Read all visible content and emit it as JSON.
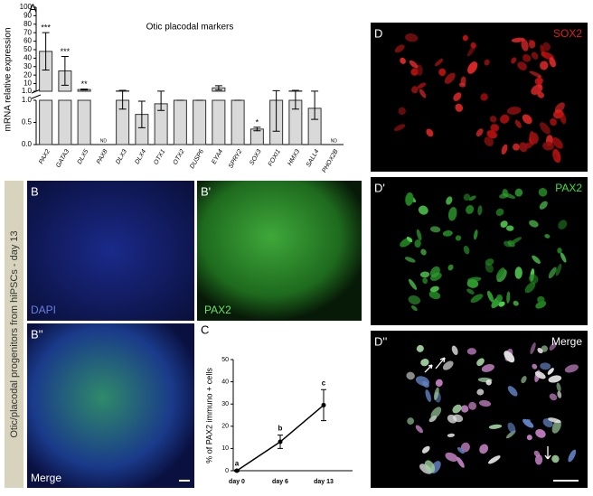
{
  "figure": {
    "panels": {
      "a": "A",
      "b": "B",
      "b1": "B'",
      "b2": "B''",
      "c": "C",
      "d": "D",
      "d1": "D'",
      "d2": "D''"
    },
    "side_label": "Otic/placodal progenitors from hiPSCs - day 13",
    "image_labels": {
      "b": "DAPI",
      "b1": "PAX2",
      "b2": "Merge",
      "d": "SOX2",
      "d1": "PAX2",
      "d2": "Merge"
    }
  },
  "chart_data": [
    {
      "type": "bar",
      "title": "Otic placodal markers",
      "ylabel": "mRNA relative expression",
      "categories": [
        "PAX2",
        "GATA3",
        "DLX5",
        "PAX8",
        "DLX3",
        "DLX4",
        "OTX1",
        "OTX2",
        "DUSP6",
        "EYA4",
        "SPRY2",
        "SOX3",
        "FOXI1",
        "HMX3",
        "SALL4",
        "PHOX2B"
      ],
      "values": [
        48,
        25,
        3,
        null,
        1.4,
        0.68,
        0.92,
        1.0,
        1.0,
        5,
        1.0,
        0.35,
        1.0,
        1.4,
        0.82,
        null
      ],
      "errors": [
        22,
        17,
        0.5,
        null,
        0.6,
        0.3,
        0.15,
        0,
        0,
        2.5,
        0,
        0.04,
        0.7,
        0.6,
        0.25,
        null
      ],
      "annotations": [
        "***",
        "***",
        "**",
        "ND",
        null,
        null,
        null,
        null,
        null,
        null,
        null,
        "*",
        null,
        null,
        null,
        "ND"
      ],
      "color": "#d9d9d9",
      "broken_axis": {
        "lower": {
          "ylim": [
            0,
            1
          ],
          "yticks": [
            {
              "value": 0,
              "label": "0.0"
            },
            {
              "value": 0.5,
              "label": "0.5"
            },
            {
              "value": 1,
              "label": "1.0"
            }
          ]
        },
        "upper": {
          "ylim": [
            1,
            100
          ],
          "yticks": [
            {
              "value": 1,
              "label": "1.0"
            },
            10,
            20,
            30,
            40,
            50,
            60,
            70,
            80,
            90,
            100
          ]
        }
      }
    },
    {
      "type": "line",
      "ylabel": "% of PAX2 immuno + cells",
      "categories": [
        "day 0",
        "day 6",
        "day 13"
      ],
      "values": [
        0,
        13,
        29.5
      ],
      "errors": [
        0.3,
        3,
        7
      ],
      "annotations": [
        "a",
        "b",
        "c"
      ],
      "color": "#000000",
      "ylim": [
        0,
        50
      ],
      "yticks": [
        0,
        10,
        20,
        30,
        40,
        50
      ]
    }
  ]
}
